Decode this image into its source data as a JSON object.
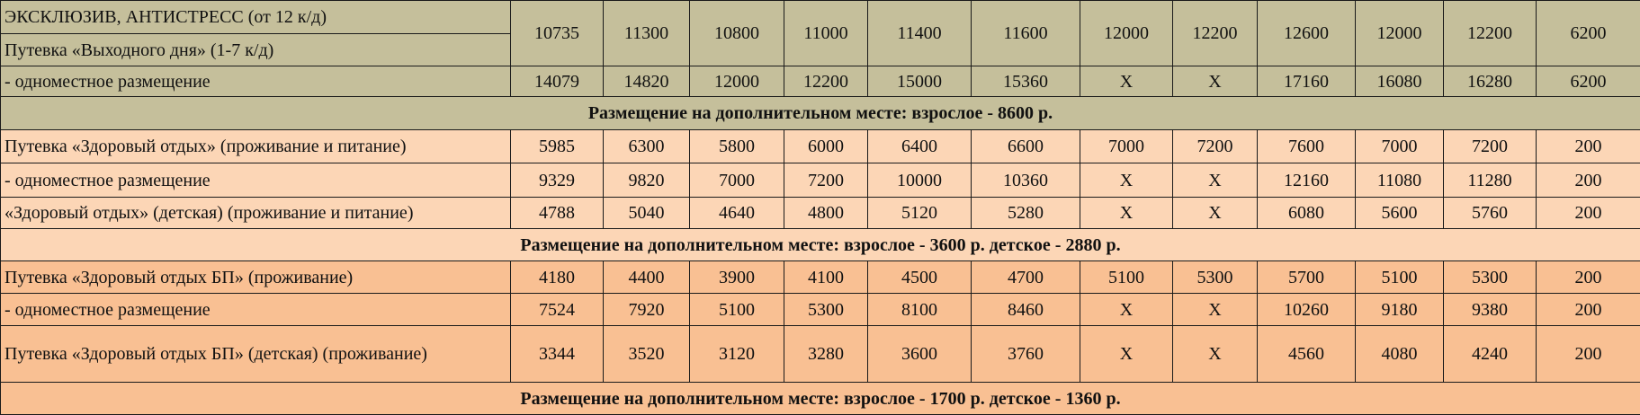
{
  "colors": {
    "olive": "#c5bf9b",
    "peach": "#fcd6b6",
    "orange": "#f9c093"
  },
  "sections": [
    {
      "rows": [
        {
          "labels": [
            "ЭКСКЛЮЗИВ, АНТИСТРЕСС (от 12 к/д)",
            "Путевка «Выходного дня» (1-7 к/д)"
          ],
          "values": [
            "10735",
            "11300",
            "10800",
            "11000",
            "11400",
            "11600",
            "12000",
            "12200",
            "12600",
            "12000",
            "12200",
            "6200"
          ]
        },
        {
          "labels": [
            "- одноместное размещение"
          ],
          "values": [
            "14079",
            "14820",
            "12000",
            "12200",
            "15000",
            "15360",
            "X",
            "X",
            "17160",
            "16080",
            "16280",
            "6200"
          ]
        }
      ],
      "banner": "Размещение на дополнительном месте: взрослое - 8600 р."
    },
    {
      "rows": [
        {
          "labels": [
            "Путевка «Здоровый отдых» (проживание и питание)"
          ],
          "values": [
            "5985",
            "6300",
            "5800",
            "6000",
            "6400",
            "6600",
            "7000",
            "7200",
            "7600",
            "7000",
            "7200",
            "200"
          ]
        },
        {
          "labels": [
            "- одноместное размещение"
          ],
          "values": [
            "9329",
            "9820",
            "7000",
            "7200",
            "10000",
            "10360",
            "X",
            "X",
            "12160",
            "11080",
            "11280",
            "200"
          ]
        },
        {
          "labels": [
            "«Здоровый отдых» (детская) (проживание и питание)"
          ],
          "values": [
            "4788",
            "5040",
            "4640",
            "4800",
            "5120",
            "5280",
            "X",
            "X",
            "6080",
            "5600",
            "5760",
            "200"
          ]
        }
      ],
      "banner": "Размещение на дополнительном месте: взрослое - 3600 р. детское - 2880 р."
    },
    {
      "rows": [
        {
          "labels": [
            "Путевка «Здоровый отдых БП» (проживание)"
          ],
          "values": [
            "4180",
            "4400",
            "3900",
            "4100",
            "4500",
            "4700",
            "5100",
            "5300",
            "5700",
            "5100",
            "5300",
            "200"
          ]
        },
        {
          "labels": [
            "- одноместное размещение"
          ],
          "values": [
            "7524",
            "7920",
            "5100",
            "5300",
            "8100",
            "8460",
            "X",
            "X",
            "10260",
            "9180",
            "9380",
            "200"
          ]
        },
        {
          "labels": [
            "Путевка «Здоровый отдых БП» (детская) (проживание)"
          ],
          "values": [
            "3344",
            "3520",
            "3120",
            "3280",
            "3600",
            "3760",
            "X",
            "X",
            "4560",
            "4080",
            "4240",
            "200"
          ]
        }
      ],
      "banner": "Размещение на дополнительном месте: взрослое - 1700 р. детское - 1360 р."
    }
  ]
}
